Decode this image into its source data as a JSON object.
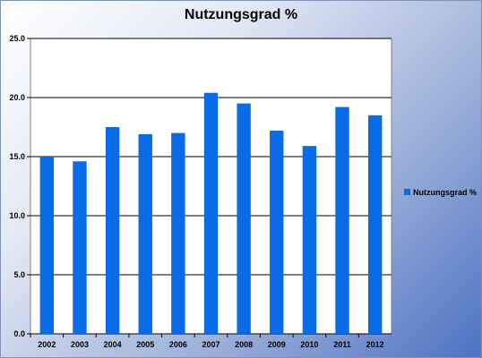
{
  "chart_data": {
    "type": "bar",
    "title": "Nutzungsgrad %",
    "categories": [
      "2002",
      "2003",
      "2004",
      "2005",
      "2006",
      "2007",
      "2008",
      "2009",
      "2010",
      "2011",
      "2012"
    ],
    "series": [
      {
        "name": "Nutzungsgrad %",
        "values": [
          15.0,
          14.6,
          17.5,
          16.9,
          17.0,
          20.4,
          19.5,
          17.2,
          15.9,
          19.2,
          18.5
        ],
        "color": "#0a6be6"
      }
    ],
    "yticks": [
      "0.0",
      "5.0",
      "10.0",
      "15.0",
      "20.0",
      "25.0"
    ],
    "ylim": [
      0,
      25
    ],
    "grid": true,
    "legend": "right",
    "plot_background": "#ffffff",
    "gridline_color": "#000000"
  }
}
